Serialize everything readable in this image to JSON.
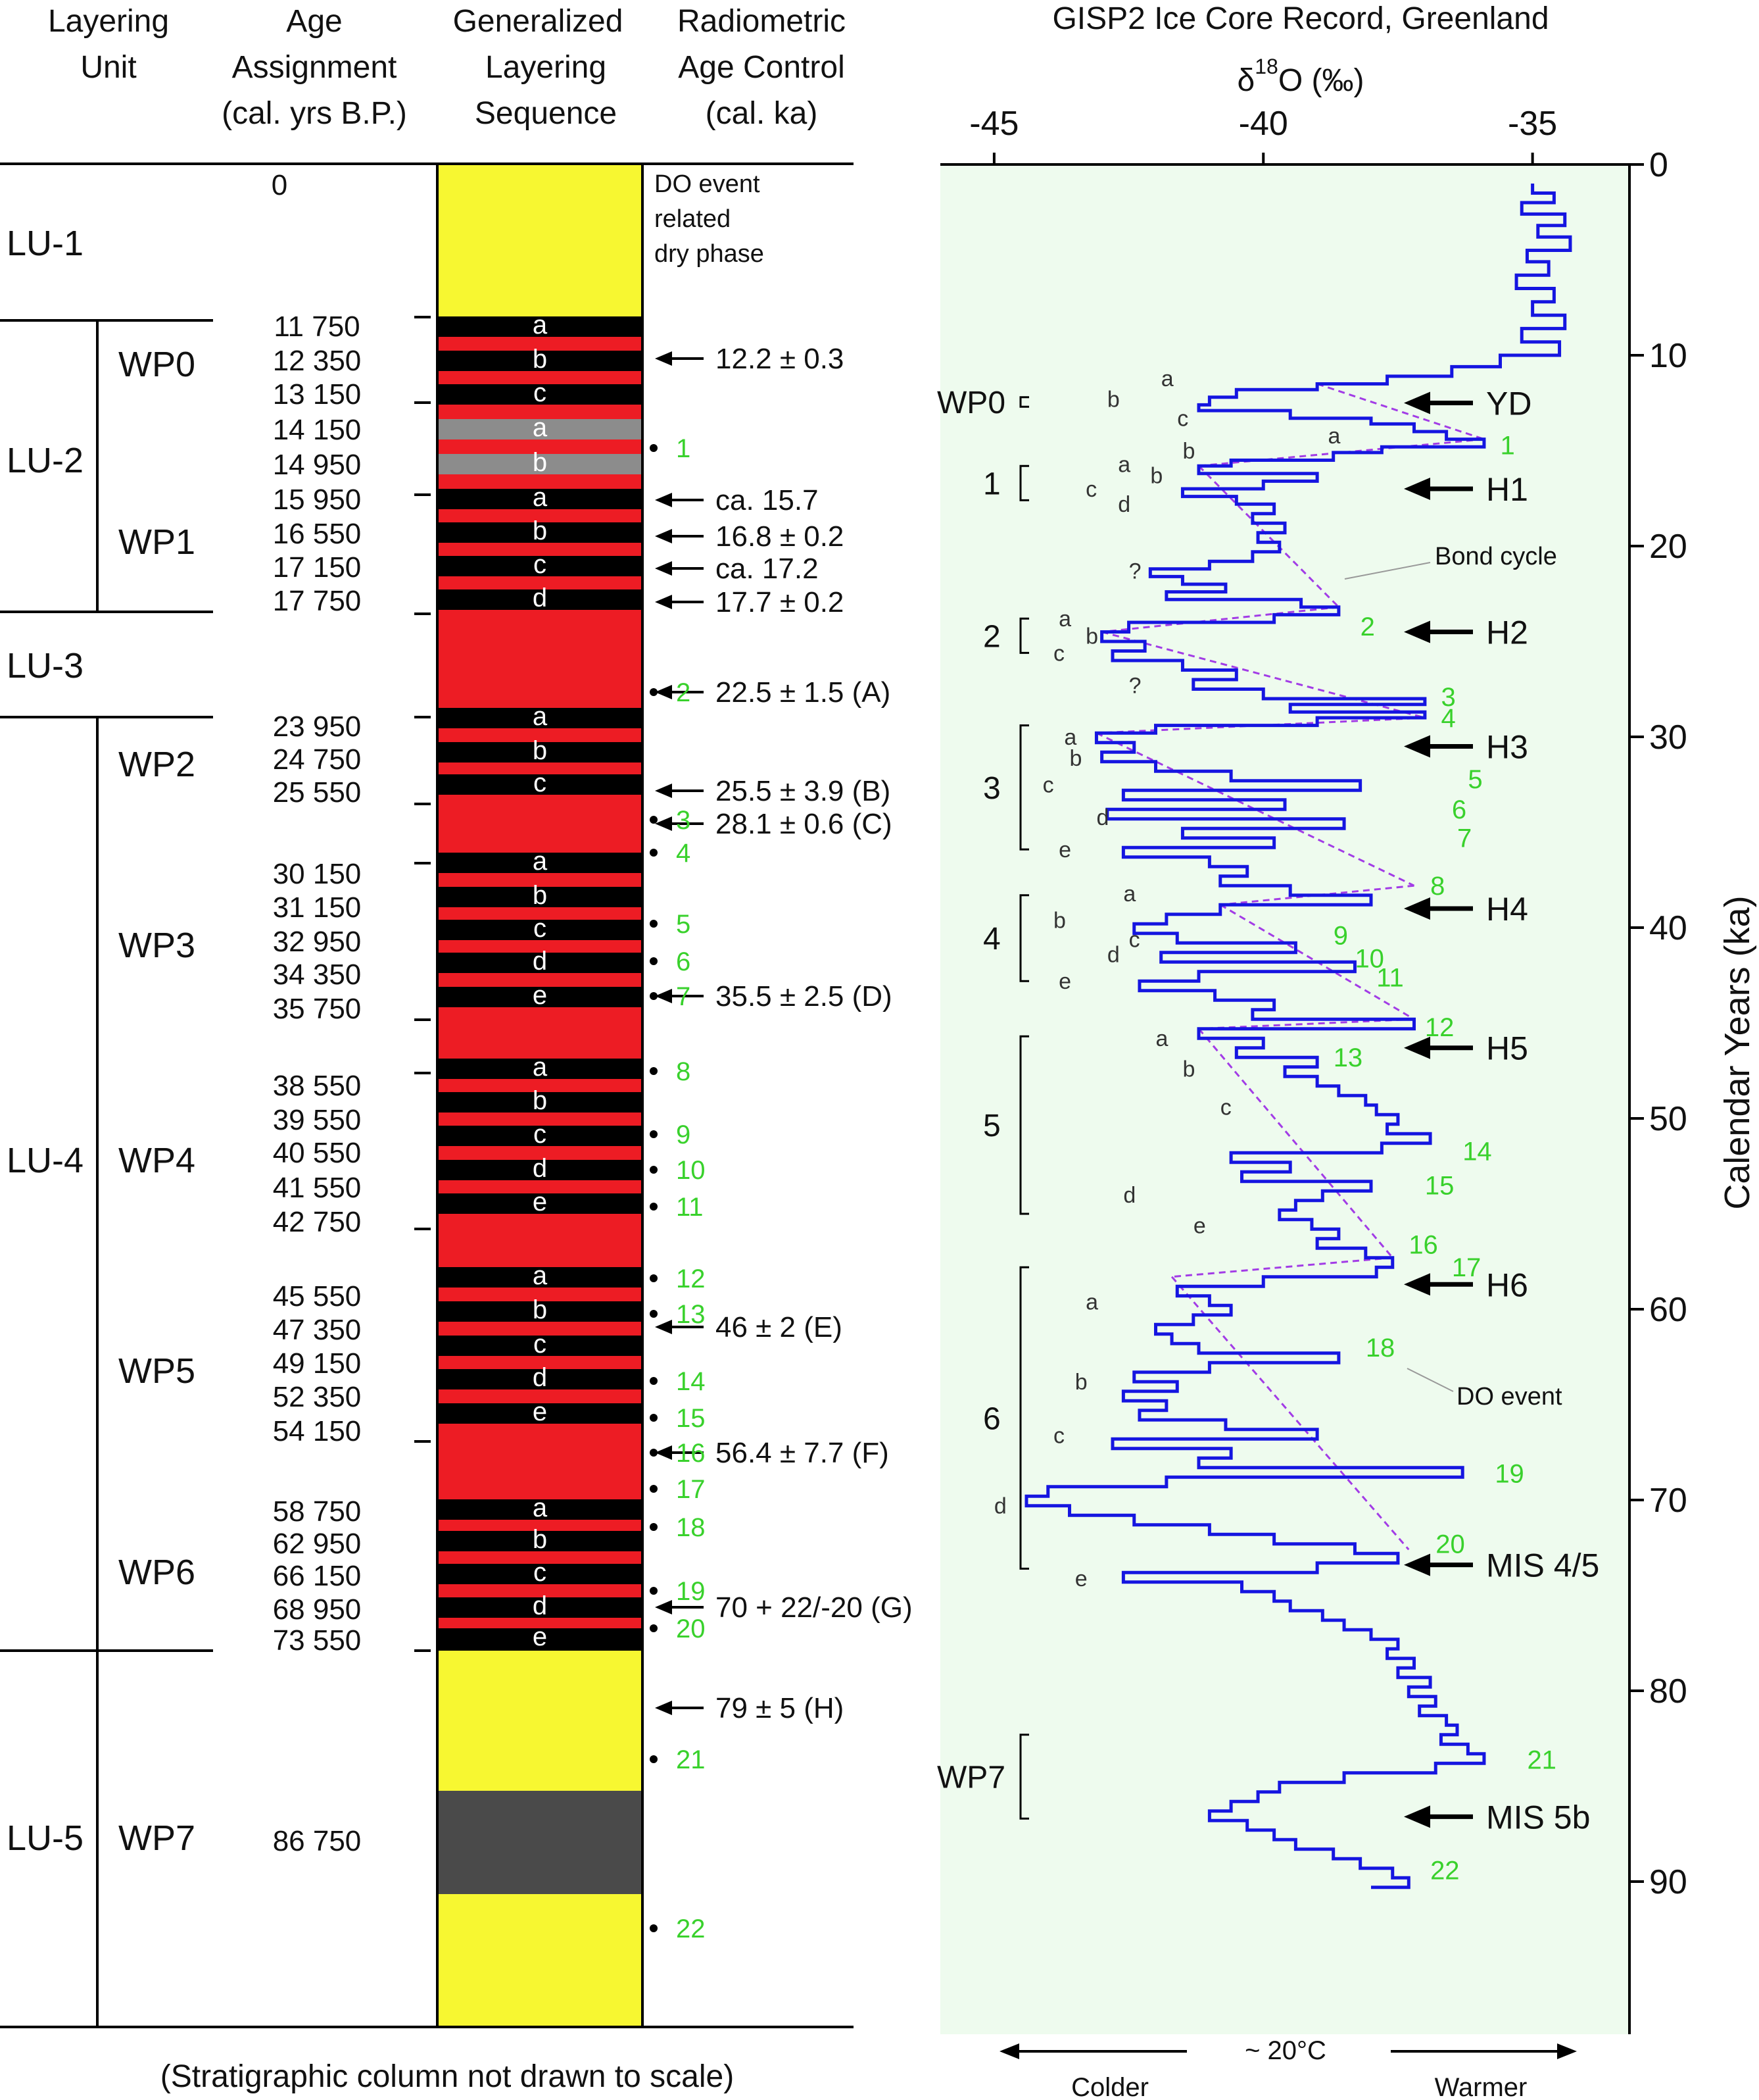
{
  "headers": {
    "unit": [
      "Layering",
      "Unit"
    ],
    "age": [
      "Age",
      "Assignment",
      "(cal. yrs B.P.)"
    ],
    "sequence": [
      "Generalized",
      "Layering",
      "Sequence"
    ],
    "control": [
      "Radiometric",
      "Age Control",
      "(cal. ka)"
    ]
  },
  "footnote": "(Stratigraphic column not drawn to scale)",
  "dry_phase_note": [
    "DO event",
    "related",
    "dry phase"
  ],
  "colors": {
    "dry_phase": "#f7f731",
    "red_layer": "#ed1c24",
    "black_layer": "#000000",
    "gray_layer": "#8c8c8c",
    "dark_layer": "#4a4a4a",
    "panel_bg": "#eefbee",
    "curve": "#1515e0",
    "bond": "#a23ce6",
    "do_labels": "#39d12c"
  },
  "layering_units": [
    {
      "name": "LU-1"
    },
    {
      "name": "LU-2"
    },
    {
      "name": "LU-3"
    },
    {
      "name": "LU-4"
    },
    {
      "name": "LU-5"
    }
  ],
  "wet_phases": [
    "WP0",
    "WP1",
    "WP2",
    "WP3",
    "WP4",
    "WP5",
    "WP6",
    "WP7"
  ],
  "ages": [
    "0",
    "11 750",
    "12 350",
    "13 150",
    "14 150",
    "14 950",
    "15 950",
    "16 550",
    "17 150",
    "17 750",
    "23 950",
    "24 750",
    "25 550",
    "30 150",
    "31 150",
    "32 950",
    "34 350",
    "35 750",
    "38 550",
    "39 550",
    "40 550",
    "41 550",
    "42 750",
    "45 550",
    "47 350",
    "49 150",
    "52 350",
    "54 150",
    "58 750",
    "62 950",
    "66 150",
    "68 950",
    "73 550",
    "86 750"
  ],
  "sublayers": {
    "WP0": [
      "a",
      "b",
      "c"
    ],
    "WP1g": [
      "a",
      "b"
    ],
    "WP1": [
      "a",
      "b",
      "c",
      "d"
    ],
    "WP2": [
      "a",
      "b",
      "c"
    ],
    "WP3": [
      "a",
      "b",
      "c",
      "d",
      "e"
    ],
    "WP4": [
      "a",
      "b",
      "c",
      "d",
      "e"
    ],
    "WP5": [
      "a",
      "b",
      "c",
      "d",
      "e"
    ],
    "WP6": [
      "a",
      "b",
      "c",
      "d",
      "e"
    ]
  },
  "radiometric_controls": [
    "12.2 ± 0.3",
    "ca. 15.7",
    "16.8 ± 0.2",
    "ca. 17.2",
    "17.7 ± 0.2",
    "22.5 ± 1.5 (A)",
    "25.5 ± 3.9 (B)",
    "28.1 ± 0.6 (C)",
    "35.5 ± 2.5 (D)",
    "46 ± 2 (E)",
    "56.4 ± 7.7 (F)",
    "70 + 22/-20 (G)",
    "79 ± 5 (H)"
  ],
  "do_event_numbers": [
    "1",
    "2",
    "3",
    "4",
    "5",
    "6",
    "7",
    "8",
    "9",
    "10",
    "11",
    "12",
    "13",
    "14",
    "15",
    "16",
    "17",
    "18",
    "19",
    "20",
    "21",
    "22"
  ],
  "ice_core": {
    "title": "GISP2 Ice Core Record, Greenland",
    "x_axis_label_main": "δ",
    "x_axis_label_sup": "18",
    "x_axis_label_rest": "O (‰)",
    "x_ticks": [
      "-45",
      "-40",
      "-35"
    ],
    "y_axis_label": "Calendar Years (ka)",
    "y_ticks": [
      "0",
      "10",
      "20",
      "30",
      "40",
      "50",
      "60",
      "70",
      "80",
      "90"
    ],
    "events": [
      "YD",
      "H1",
      "H2",
      "H3",
      "H4",
      "H5",
      "H6",
      "MIS 4/5",
      "MIS 5b"
    ],
    "annotations": {
      "bond": "Bond cycle",
      "do_event": "DO event",
      "question": "?"
    },
    "phase_brackets": [
      "WP0",
      "1",
      "2",
      "3",
      "4",
      "5",
      "6",
      "WP7"
    ],
    "bottom": {
      "colder": "Colder",
      "warmer": "Warmer",
      "amplitude": "~ 20°C"
    }
  },
  "chart_data": {
    "type": "line",
    "title": "GISP2 Ice Core Record, Greenland",
    "xlabel": "δ18O (‰)",
    "ylabel": "Calendar Years (ka)",
    "xlim": [
      -46,
      -33.2
    ],
    "ylim": [
      0,
      97
    ],
    "x_ticks": [
      -45,
      -40,
      -35
    ],
    "y_ticks": [
      0,
      10,
      20,
      30,
      40,
      50,
      60,
      70,
      80,
      90
    ],
    "series": [
      {
        "values": [
          [
            1,
            -35.0
          ],
          [
            1.5,
            -34.6
          ],
          [
            2,
            -35.2
          ],
          [
            2.6,
            -34.4
          ],
          [
            3.2,
            -34.9
          ],
          [
            3.8,
            -34.3
          ],
          [
            4.5,
            -35.1
          ],
          [
            5.1,
            -34.7
          ],
          [
            5.8,
            -35.3
          ],
          [
            6.5,
            -34.6
          ],
          [
            7.2,
            -35.0
          ],
          [
            7.9,
            -34.4
          ],
          [
            8.6,
            -35.2
          ],
          [
            9.3,
            -34.5
          ],
          [
            10,
            -35.6
          ],
          [
            10.6,
            -36.5
          ],
          [
            11.1,
            -37.7
          ],
          [
            11.5,
            -39.0
          ],
          [
            11.8,
            -40.5
          ],
          [
            12.2,
            -41.0
          ],
          [
            12.6,
            -41.2
          ],
          [
            12.9,
            -39.5
          ],
          [
            13.3,
            -38.0
          ],
          [
            13.6,
            -37.2
          ],
          [
            14,
            -36.6
          ],
          [
            14.4,
            -35.9
          ],
          [
            14.8,
            -37.8
          ],
          [
            15.1,
            -38.7
          ],
          [
            15.5,
            -40.6
          ],
          [
            15.8,
            -41.2
          ],
          [
            16.2,
            -39.0
          ],
          [
            16.6,
            -40.0
          ],
          [
            17.0,
            -41.5
          ],
          [
            17.4,
            -40.5
          ],
          [
            17.8,
            -39.8
          ],
          [
            18.3,
            -40.2
          ],
          [
            18.8,
            -39.6
          ],
          [
            19.3,
            -40.1
          ],
          [
            19.8,
            -39.7
          ],
          [
            20.3,
            -40.2
          ],
          [
            20.8,
            -41.0
          ],
          [
            21.2,
            -42.1
          ],
          [
            21.6,
            -41.5
          ],
          [
            22.0,
            -40.7
          ],
          [
            22.4,
            -41.8
          ],
          [
            22.8,
            -39.3
          ],
          [
            23.2,
            -38.6
          ],
          [
            23.6,
            -39.8
          ],
          [
            24.0,
            -42.5
          ],
          [
            24.5,
            -43.0
          ],
          [
            25.0,
            -42.2
          ],
          [
            25.5,
            -42.8
          ],
          [
            26.0,
            -41.5
          ],
          [
            26.5,
            -40.5
          ],
          [
            27.0,
            -41.3
          ],
          [
            27.5,
            -40.0
          ],
          [
            28.0,
            -37.0
          ],
          [
            28.3,
            -39.5
          ],
          [
            28.7,
            -37.0
          ],
          [
            29.0,
            -39.0
          ],
          [
            29.4,
            -42.0
          ],
          [
            29.8,
            -43.1
          ],
          [
            30.3,
            -42.4
          ],
          [
            30.8,
            -43.0
          ],
          [
            31.3,
            -42.0
          ],
          [
            31.8,
            -40.6
          ],
          [
            32.3,
            -38.2
          ],
          [
            32.8,
            -42.6
          ],
          [
            33.3,
            -39.6
          ],
          [
            33.8,
            -42.9
          ],
          [
            34.3,
            -38.5
          ],
          [
            34.8,
            -41.5
          ],
          [
            35.3,
            -39.8
          ],
          [
            35.8,
            -42.6
          ],
          [
            36.3,
            -41.0
          ],
          [
            36.8,
            -40.3
          ],
          [
            37.3,
            -40.8
          ],
          [
            37.8,
            -39.5
          ],
          [
            38.3,
            -38.0
          ],
          [
            38.8,
            -40.8
          ],
          [
            39.3,
            -41.8
          ],
          [
            39.8,
            -42.4
          ],
          [
            40.3,
            -41.6
          ],
          [
            40.8,
            -39.4
          ],
          [
            41.3,
            -41.9
          ],
          [
            41.8,
            -38.3
          ],
          [
            42.3,
            -41.2
          ],
          [
            42.8,
            -42.3
          ],
          [
            43.3,
            -40.9
          ],
          [
            43.8,
            -39.8
          ],
          [
            44.3,
            -40.2
          ],
          [
            44.8,
            -37.2
          ],
          [
            45.3,
            -41.2
          ],
          [
            45.8,
            -40.0
          ],
          [
            46.3,
            -40.5
          ],
          [
            46.8,
            -39.0
          ],
          [
            47.3,
            -39.6
          ],
          [
            47.8,
            -39.0
          ],
          [
            48.3,
            -38.6
          ],
          [
            48.8,
            -38.1
          ],
          [
            49.3,
            -37.9
          ],
          [
            49.8,
            -37.5
          ],
          [
            50.3,
            -37.7
          ],
          [
            50.8,
            -36.9
          ],
          [
            51.3,
            -37.8
          ],
          [
            51.8,
            -40.6
          ],
          [
            52.3,
            -39.5
          ],
          [
            52.8,
            -40.4
          ],
          [
            53.3,
            -38.0
          ],
          [
            53.8,
            -38.9
          ],
          [
            54.3,
            -39.4
          ],
          [
            54.8,
            -39.7
          ],
          [
            55.3,
            -39.1
          ],
          [
            55.8,
            -38.6
          ],
          [
            56.3,
            -39.0
          ],
          [
            56.8,
            -38.1
          ],
          [
            57.3,
            -37.6
          ],
          [
            57.8,
            -37.9
          ],
          [
            58.3,
            -40.0
          ],
          [
            58.8,
            -41.6
          ],
          [
            59.3,
            -41.0
          ],
          [
            59.8,
            -40.6
          ],
          [
            60.3,
            -41.3
          ],
          [
            60.8,
            -42.0
          ],
          [
            61.3,
            -41.7
          ],
          [
            61.8,
            -41.2
          ],
          [
            62.3,
            -38.6
          ],
          [
            62.8,
            -41.0
          ],
          [
            63.3,
            -42.4
          ],
          [
            63.8,
            -41.6
          ],
          [
            64.3,
            -42.6
          ],
          [
            64.8,
            -41.8
          ],
          [
            65.3,
            -42.3
          ],
          [
            65.8,
            -40.7
          ],
          [
            66.3,
            -39.0
          ],
          [
            66.8,
            -42.8
          ],
          [
            67.3,
            -40.6
          ],
          [
            67.8,
            -41.2
          ],
          [
            68.3,
            -36.3
          ],
          [
            68.8,
            -41.8
          ],
          [
            69.3,
            -44.0
          ],
          [
            69.8,
            -44.4
          ],
          [
            70.3,
            -43.6
          ],
          [
            70.8,
            -42.4
          ],
          [
            71.3,
            -41.0
          ],
          [
            71.8,
            -39.8
          ],
          [
            72.3,
            -38.3
          ],
          [
            72.8,
            -37.5
          ],
          [
            73.3,
            -39.0
          ],
          [
            73.8,
            -42.6
          ],
          [
            74.3,
            -40.4
          ],
          [
            74.8,
            -39.8
          ],
          [
            75.3,
            -39.5
          ],
          [
            75.8,
            -38.9
          ],
          [
            76.3,
            -38.5
          ],
          [
            76.8,
            -38.0
          ],
          [
            77.3,
            -37.5
          ],
          [
            77.8,
            -37.7
          ],
          [
            78.3,
            -37.2
          ],
          [
            78.8,
            -37.5
          ],
          [
            79.3,
            -36.9
          ],
          [
            79.8,
            -37.3
          ],
          [
            80.3,
            -36.8
          ],
          [
            80.8,
            -37.1
          ],
          [
            81.3,
            -36.6
          ],
          [
            81.8,
            -36.4
          ],
          [
            82.3,
            -36.7
          ],
          [
            82.8,
            -36.2
          ],
          [
            83.3,
            -35.9
          ],
          [
            83.8,
            -36.8
          ],
          [
            84.3,
            -38.5
          ],
          [
            84.8,
            -39.7
          ],
          [
            85.3,
            -40.1
          ],
          [
            85.8,
            -40.6
          ],
          [
            86.3,
            -41.0
          ],
          [
            86.8,
            -40.3
          ],
          [
            87.3,
            -39.8
          ],
          [
            87.8,
            -39.4
          ],
          [
            88.3,
            -38.7
          ],
          [
            88.8,
            -38.2
          ],
          [
            89.3,
            -37.6
          ],
          [
            89.8,
            -37.3
          ],
          [
            90.3,
            -38.0
          ]
        ]
      }
    ]
  }
}
